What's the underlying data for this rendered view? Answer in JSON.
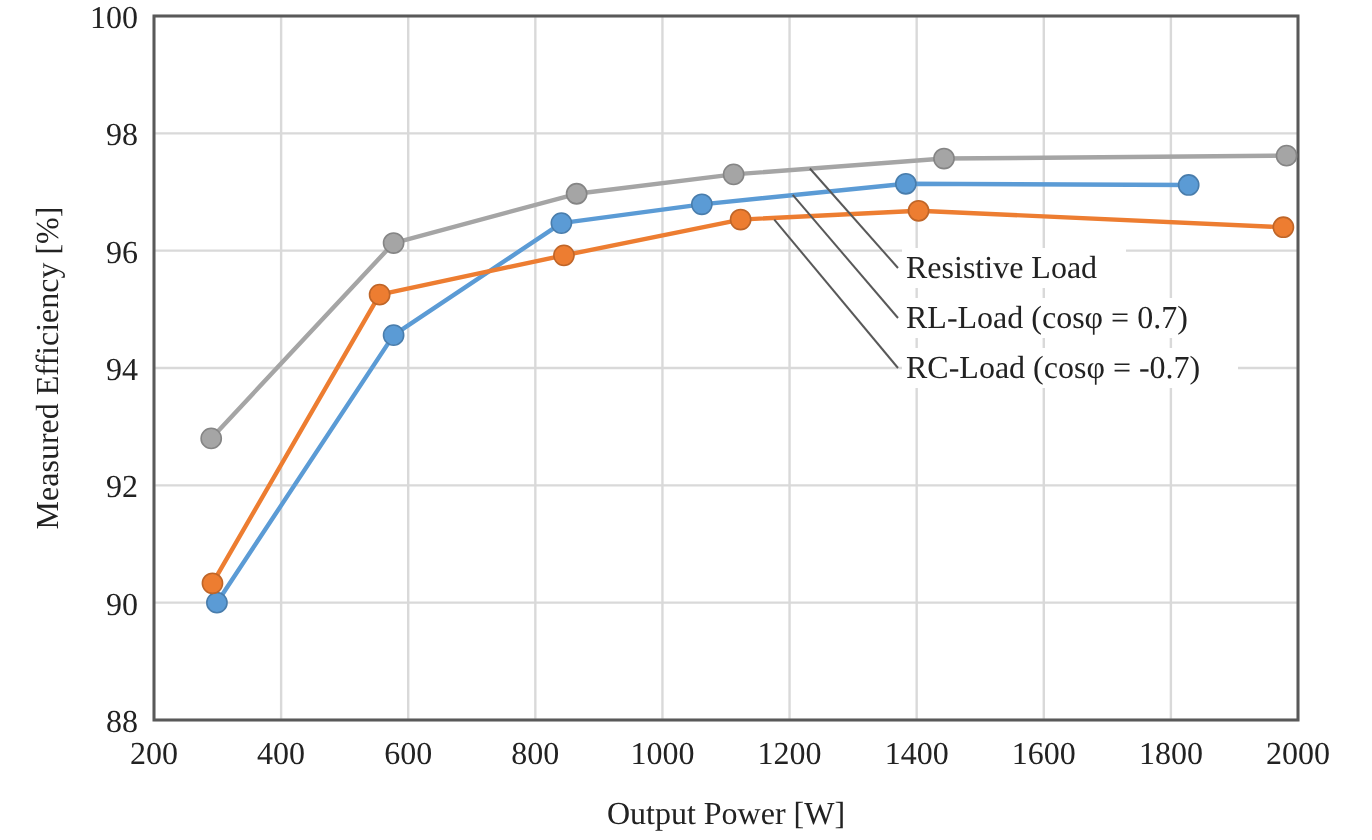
{
  "chart_data": {
    "type": "line",
    "xlabel": "Output Power [W]",
    "ylabel": "Measured Efficiency [%]",
    "annotations": [
      {
        "text": "Resistive Load",
        "x": 1232,
        "y": 97.4
      },
      {
        "text": "RL-Load (cosφ = 0.7)",
        "x": 1205,
        "y": 96.95
      },
      {
        "text": "RC-Load (cosφ = -0.7)",
        "x": 1176,
        "y": 96.53
      }
    ],
    "xlim": [
      200,
      2000
    ],
    "xticks": [
      200,
      400,
      600,
      800,
      1000,
      1200,
      1400,
      1600,
      1800,
      2000
    ],
    "ylim": [
      88,
      100
    ],
    "yticks": [
      88,
      90,
      92,
      94,
      96,
      98,
      100
    ],
    "grid": true,
    "marker": "circle",
    "line_style": "solid",
    "series": [
      {
        "color": "#a5a5a5",
        "x": [
          290,
          577,
          865,
          1112,
          1443,
          1982
        ],
        "values": [
          92.8,
          96.13,
          96.97,
          97.3,
          97.57,
          97.62
        ]
      },
      {
        "color": "#5b9bd5",
        "x": [
          299,
          577,
          841,
          1062,
          1383,
          1828
        ],
        "values": [
          90.0,
          94.56,
          96.47,
          96.79,
          97.14,
          97.12
        ]
      },
      {
        "color": "#ed7d31",
        "x": [
          292,
          555,
          845,
          1123,
          1403,
          1977
        ],
        "values": [
          90.33,
          95.25,
          95.92,
          96.53,
          96.68,
          96.4
        ]
      }
    ]
  }
}
